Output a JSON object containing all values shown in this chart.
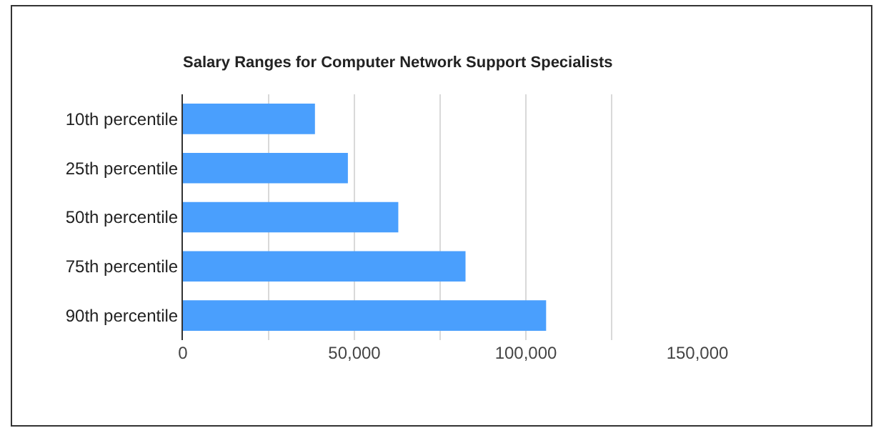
{
  "chart_data": {
    "type": "bar",
    "orientation": "horizontal",
    "title": "Salary Ranges for Computer Network Support Specialists",
    "categories": [
      "10th percentile",
      "25th percentile",
      "50th percentile",
      "75th percentile",
      "90th percentile"
    ],
    "values": [
      38500,
      48100,
      62800,
      82400,
      105900
    ],
    "color": "#4a9ffd",
    "xlim": [
      0,
      150000
    ],
    "xticks": [
      0,
      {
        "value": 25000,
        "label": null
      },
      {
        "value": 50000,
        "label": "50,000"
      },
      {
        "value": 75000,
        "label": null
      },
      {
        "value": 100000,
        "label": "100,000"
      },
      {
        "value": 125000,
        "label": null
      },
      {
        "value": 150000,
        "label": "150,000"
      }
    ],
    "grid": "x"
  }
}
